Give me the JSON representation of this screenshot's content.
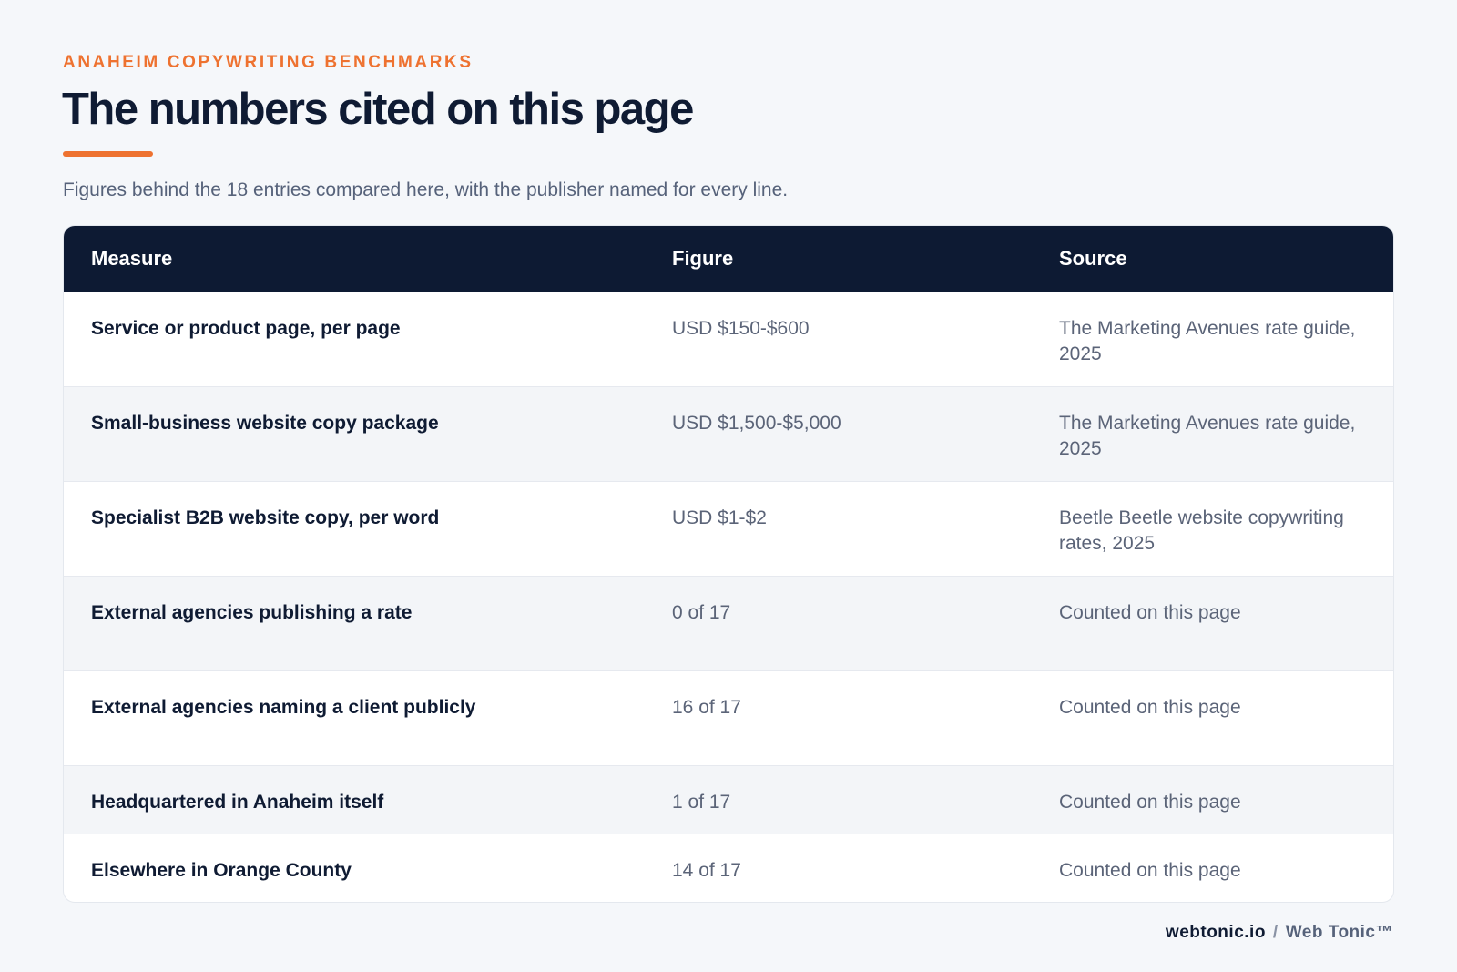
{
  "header": {
    "eyebrow": "ANAHEIM COPYWRITING BENCHMARKS",
    "title": "The numbers cited on this page",
    "subtitle": "Figures behind the 18 entries compared here, with the publisher named for every line."
  },
  "table": {
    "columns": [
      "Measure",
      "Figure",
      "Source"
    ],
    "rows": [
      [
        "Service or product page, per page",
        "USD $150-$600",
        "The Marketing Avenues rate guide, 2025"
      ],
      [
        "Small-business website copy package",
        "USD $1,500-$5,000",
        "The Marketing Avenues rate guide, 2025"
      ],
      [
        "Specialist B2B website copy, per word",
        "USD $1-$2",
        "Beetle Beetle website copywriting rates, 2025"
      ],
      [
        "External agencies publishing a rate",
        "0 of 17",
        "Counted on this page"
      ],
      [
        "External agencies naming a client publicly",
        "16 of 17",
        "Counted on this page"
      ],
      [
        "Headquartered in Anaheim itself",
        "1 of 17",
        "Counted on this page"
      ],
      [
        "Elsewhere in Orange County",
        "14 of 17",
        "Counted on this page"
      ]
    ]
  },
  "footer": {
    "domain": "webtonic.io",
    "separator": "/",
    "brand": "Web Tonic™"
  }
}
